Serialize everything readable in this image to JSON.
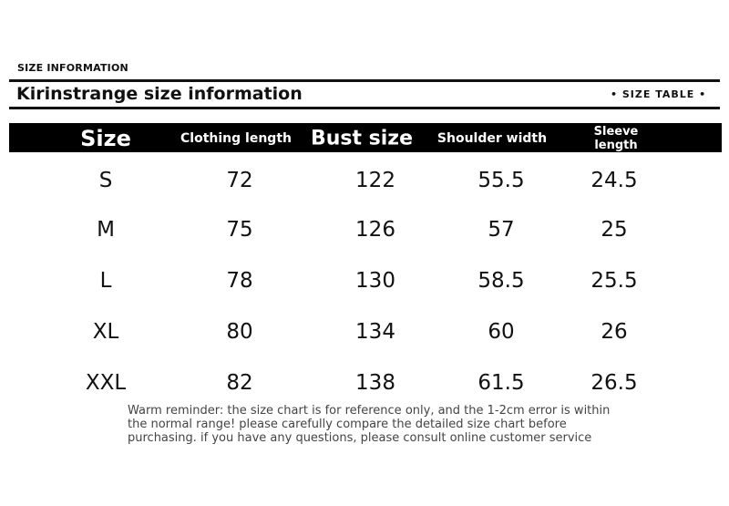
{
  "header": {
    "label": "SIZE INFORMATION",
    "title": "Kirinstrange size information",
    "tag": "• SIZE TABLE •"
  },
  "table": {
    "columns": [
      "Size",
      "Clothing length",
      "Bust size",
      "Shoulder width",
      "Sleeve length"
    ],
    "rows": [
      [
        "S",
        "72",
        "122",
        "55.5",
        "24.5"
      ],
      [
        "M",
        "75",
        "126",
        "57",
        "25"
      ],
      [
        "L",
        "78",
        "130",
        "58.5",
        "25.5"
      ],
      [
        "XL",
        "80",
        "134",
        "60",
        "26"
      ],
      [
        "XXL",
        "82",
        "138",
        "61.5",
        "26.5"
      ]
    ]
  },
  "note": {
    "lines": [
      "Warm reminder: the size chart is for reference only, and the 1-2cm error is within",
      "the normal range! please carefully compare the detailed size chart before",
      "purchasing. if you have any questions, please consult online customer service"
    ]
  }
}
